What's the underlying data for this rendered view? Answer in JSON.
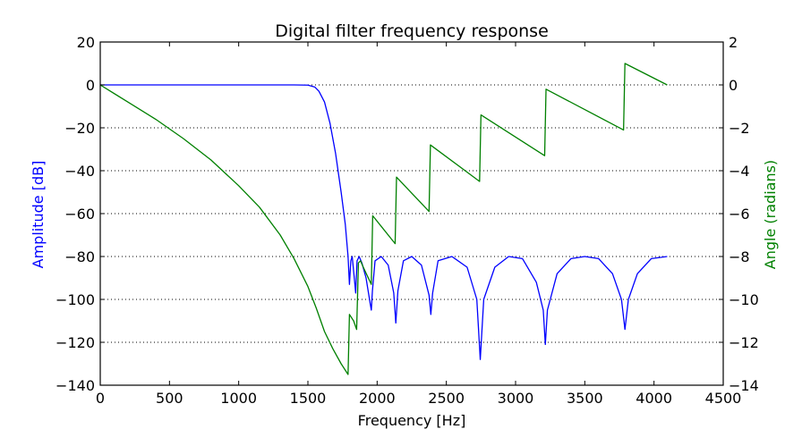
{
  "chart_data": {
    "type": "line",
    "title": "Digital filter frequency response",
    "xlabel": "Frequency [Hz]",
    "ylabel_left": "Amplitude [dB]",
    "ylabel_right": "Angle (radians)",
    "xlim": [
      0,
      4500
    ],
    "ylim_left": [
      -140,
      20
    ],
    "ylim_right": [
      -14,
      2
    ],
    "x_ticks": [
      0,
      500,
      1000,
      1500,
      2000,
      2500,
      3000,
      3500,
      4000,
      4500
    ],
    "y_left_ticks": [
      20,
      0,
      -20,
      -40,
      -60,
      -80,
      -100,
      -120,
      -140
    ],
    "y_left_tick_labels": [
      "20",
      "0",
      "−20",
      "−40",
      "−60",
      "−80",
      "−100",
      "−120",
      "−140"
    ],
    "y_right_ticks": [
      2,
      0,
      -2,
      -4,
      -6,
      -8,
      -10,
      -12,
      -14
    ],
    "y_right_tick_labels": [
      "2",
      "0",
      "−2",
      "−4",
      "−6",
      "−8",
      "−10",
      "−12",
      "−14"
    ],
    "grid": "horizontal dotted",
    "colors": {
      "amplitude": "#0000ff",
      "angle": "#008000",
      "axes": "#000000"
    },
    "series": [
      {
        "name": "Amplitude",
        "axis": "left",
        "color": "#0000ff",
        "x": [
          0,
          1000,
          1400,
          1500,
          1550,
          1580,
          1620,
          1660,
          1700,
          1740,
          1770,
          1790,
          1800,
          1810,
          1820,
          1835,
          1845,
          1855,
          1870,
          1890,
          1920,
          1950,
          1958,
          1966,
          1985,
          2030,
          2080,
          2120,
          2135,
          2150,
          2190,
          2250,
          2320,
          2375,
          2388,
          2401,
          2440,
          2540,
          2650,
          2720,
          2745,
          2770,
          2850,
          2950,
          3050,
          3150,
          3200,
          3215,
          3230,
          3300,
          3400,
          3500,
          3600,
          3700,
          3765,
          3790,
          3815,
          3880,
          3980,
          4095
        ],
        "values": [
          0,
          0,
          0,
          -0.1,
          -1,
          -3,
          -8,
          -18,
          -32,
          -50,
          -65,
          -80,
          -93,
          -82,
          -80,
          -90,
          -97,
          -82,
          -80,
          -83,
          -90,
          -102,
          -105,
          -96,
          -82,
          -80,
          -84,
          -97,
          -111,
          -96,
          -82,
          -80,
          -84,
          -98,
          -107,
          -97,
          -82,
          -80,
          -85,
          -100,
          -128,
          -100,
          -85,
          -80,
          -81,
          -92,
          -105,
          -121,
          -105,
          -88,
          -81,
          -80,
          -81,
          -88,
          -100,
          -114,
          -100,
          -88,
          -81,
          -80
        ]
      },
      {
        "name": "Angle",
        "axis": "right",
        "color": "#008000",
        "x": [
          0,
          200,
          400,
          600,
          800,
          1000,
          1150,
          1300,
          1400,
          1500,
          1560,
          1620,
          1680,
          1740,
          1790,
          1800,
          1830,
          1852,
          1865,
          1880,
          1900,
          1958,
          1968,
          2130,
          2140,
          2375,
          2385,
          2740,
          2750,
          3210,
          3220,
          3780,
          3790,
          4095
        ],
        "values": [
          0,
          -0.8,
          -1.6,
          -2.5,
          -3.5,
          -4.7,
          -5.7,
          -7.0,
          -8.1,
          -9.4,
          -10.4,
          -11.5,
          -12.3,
          -13.0,
          -13.5,
          -10.7,
          -11.0,
          -11.4,
          -8.3,
          -8.2,
          -8.5,
          -9.3,
          -6.1,
          -7.4,
          -4.3,
          -5.9,
          -2.8,
          -4.5,
          -1.4,
          -3.3,
          -0.2,
          -2.1,
          1.0,
          0.0
        ]
      }
    ]
  }
}
